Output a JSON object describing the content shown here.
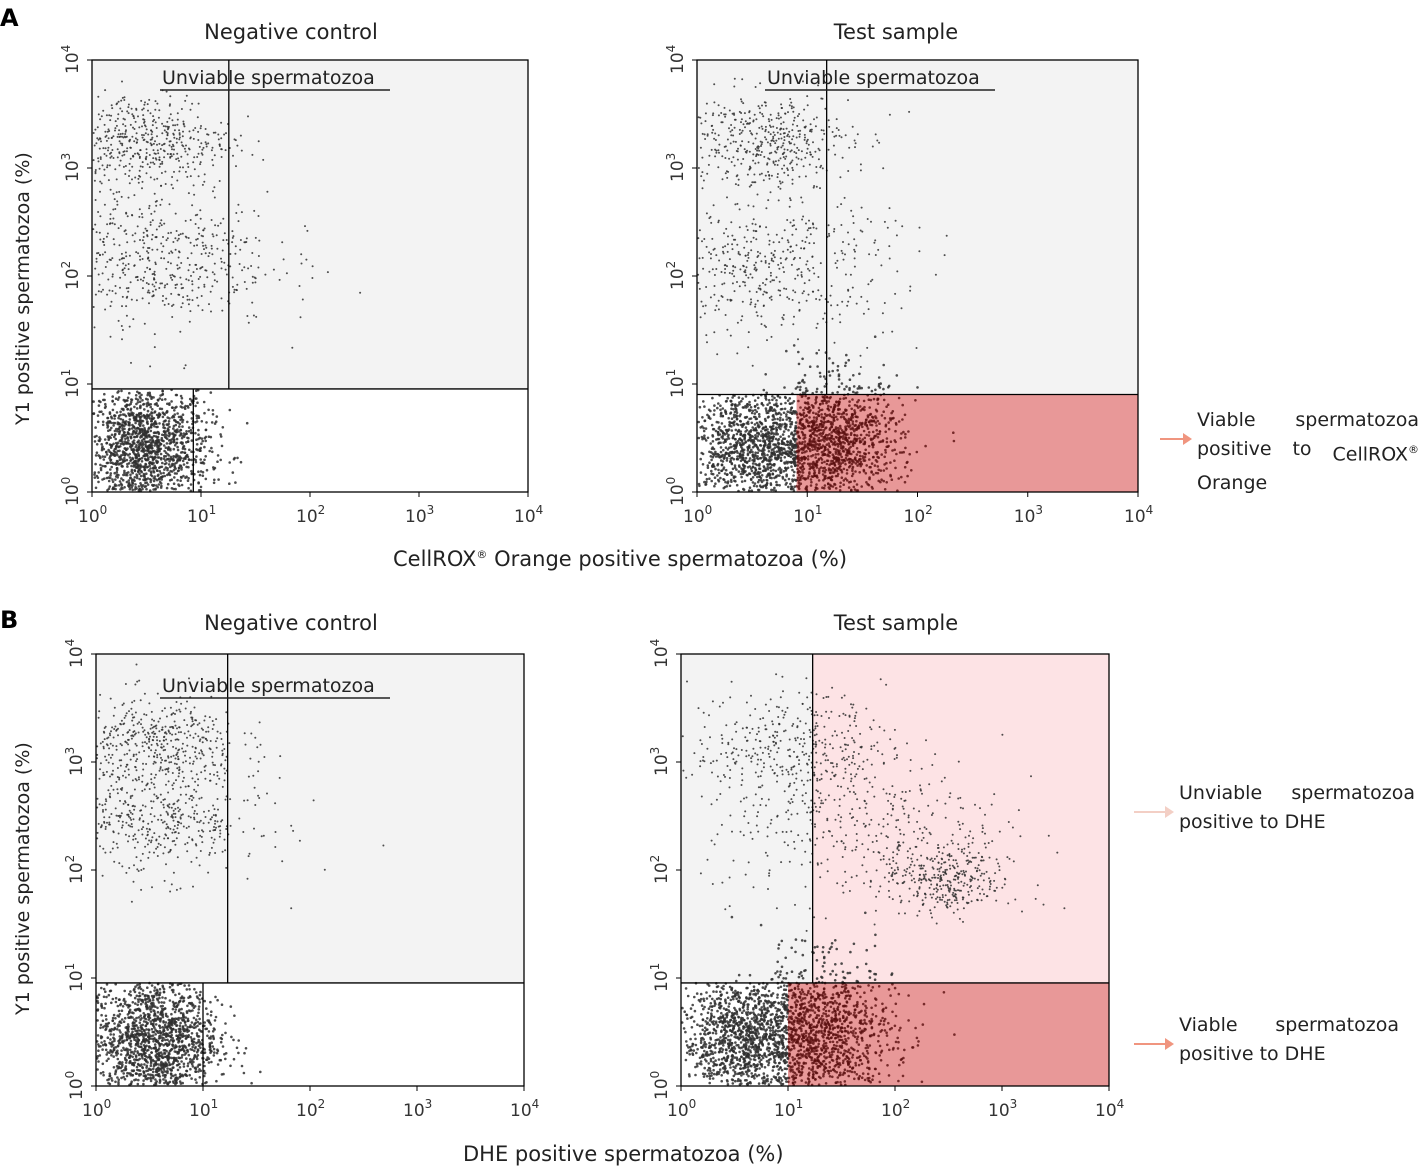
{
  "panels": {
    "A": {
      "letter": "A",
      "xlabel_pre": "CellROX",
      "xlabel_reg": "®",
      "xlabel_post": " Orange positive spermatozoa (%)",
      "annotation": {
        "words_row1": [
          "Viable",
          "spermatozoa"
        ],
        "words_row2": [
          "positive",
          "to",
          "CellROX"
        ],
        "reg": "®",
        "row3": "Orange",
        "color": "#f0957f"
      }
    },
    "B": {
      "letter": "B",
      "xlabel": "DHE positive spermatozoa (%)",
      "annotation_unviable": {
        "words_row1": [
          "Unviable",
          "spermatozoa"
        ],
        "row2": "positive to DHE",
        "color": "#f3cfc5"
      },
      "annotation_viable": {
        "words_row1": [
          "Viable",
          "spermatozoa"
        ],
        "row2": "positive to DHE",
        "color": "#f0957f"
      }
    }
  },
  "ylabel": "Y1 positive spermatozoa (%)",
  "colors": {
    "unviable_region": "#f3f3f3",
    "viable_positive": "#e89898",
    "unviable_positive": "#fde3e5",
    "dots": "#2f2f2f",
    "dots_red": "#5a0f0f"
  },
  "chart_data": [
    {
      "type": "scatter",
      "panel": "A",
      "title": "Negative control",
      "xscale": "log",
      "yscale": "log",
      "xlim": [
        1,
        10000
      ],
      "ylim": [
        1,
        10000
      ],
      "xticks": [
        "10^0",
        "10^1",
        "10^2",
        "10^3",
        "10^4"
      ],
      "yticks": [
        "10^0",
        "10^1",
        "10^2",
        "10^3",
        "10^4"
      ],
      "gate_label": "Unviable spermatozoa",
      "gate_x_threshold": 18,
      "gate_y_threshold": 9,
      "viable_gate_x_max": 8.5,
      "populations": [
        {
          "name": "viable",
          "x_center": 3,
          "y_center": 2.5,
          "spread": 0.3,
          "count": 1600
        },
        {
          "name": "unviable-high",
          "x_center": 3,
          "y_center": 1800,
          "spread": 0.4,
          "count": 500
        },
        {
          "name": "unviable-mid",
          "x_center": 3,
          "y_center": 150,
          "spread": 0.6,
          "count": 600
        }
      ]
    },
    {
      "type": "scatter",
      "panel": "A",
      "title": "Test sample",
      "xscale": "log",
      "yscale": "log",
      "xlim": [
        1,
        10000
      ],
      "ylim": [
        1,
        10000
      ],
      "xticks": [
        "10^0",
        "10^1",
        "10^2",
        "10^3",
        "10^4"
      ],
      "yticks": [
        "10^0",
        "10^1",
        "10^2",
        "10^3",
        "10^4"
      ],
      "gate_label": "Unviable spermatozoa",
      "gate_x_threshold": 15,
      "gate_y_threshold": 8,
      "positive_x_threshold": 8,
      "populations": [
        {
          "name": "viable",
          "x_center": 3.5,
          "y_center": 2.5,
          "spread": 0.3,
          "count": 1300
        },
        {
          "name": "viable-positive",
          "x_center": 18,
          "y_center": 2.8,
          "spread": 0.3,
          "count": 1200
        },
        {
          "name": "unviable-high",
          "x_center": 4,
          "y_center": 1800,
          "spread": 0.4,
          "count": 450
        },
        {
          "name": "unviable-mid",
          "x_center": 4,
          "y_center": 120,
          "spread": 0.6,
          "count": 500
        }
      ]
    },
    {
      "type": "scatter",
      "panel": "B",
      "title": "Negative control",
      "xscale": "log",
      "yscale": "log",
      "xlim": [
        1,
        10000
      ],
      "ylim": [
        1,
        10000
      ],
      "xticks": [
        "10^0",
        "10^1",
        "10^2",
        "10^3",
        "10^4"
      ],
      "yticks": [
        "10^0",
        "10^1",
        "10^2",
        "10^3",
        "10^4"
      ],
      "gate_label": "Unviable spermatozoa",
      "gate_x_threshold": 17,
      "gate_y_threshold": 9,
      "viable_gate_x_max": 10,
      "populations": [
        {
          "name": "viable",
          "x_center": 3.5,
          "y_center": 2.7,
          "spread": 0.3,
          "count": 1600
        },
        {
          "name": "unviable-high",
          "x_center": 3.5,
          "y_center": 1500,
          "spread": 0.4,
          "count": 450
        },
        {
          "name": "unviable-mid",
          "x_center": 3.5,
          "y_center": 300,
          "spread": 0.5,
          "count": 500
        }
      ]
    },
    {
      "type": "scatter",
      "panel": "B",
      "title": "Test sample",
      "xscale": "log",
      "yscale": "log",
      "xlim": [
        1,
        10000
      ],
      "ylim": [
        1,
        10000
      ],
      "xticks": [
        "10^0",
        "10^1",
        "10^2",
        "10^3",
        "10^4"
      ],
      "yticks": [
        "10^0",
        "10^1",
        "10^2",
        "10^3",
        "10^4"
      ],
      "gate_x_threshold": 17,
      "gate_y_threshold": 9,
      "positive_x_threshold": 10,
      "populations": [
        {
          "name": "viable",
          "x_center": 4,
          "y_center": 2.7,
          "spread": 0.3,
          "count": 1300
        },
        {
          "name": "viable-positive",
          "x_center": 20,
          "y_center": 2.8,
          "spread": 0.35,
          "count": 1300
        },
        {
          "name": "unviable-high",
          "x_center": 10,
          "y_center": 1500,
          "spread": 0.45,
          "count": 350
        },
        {
          "name": "unviable-positive-tail",
          "x_center": 300,
          "y_center": 80,
          "spread": 0.3,
          "count": 350
        },
        {
          "name": "unviable-scatter",
          "x_center": 40,
          "y_center": 300,
          "spread": 0.7,
          "count": 400
        }
      ]
    }
  ]
}
